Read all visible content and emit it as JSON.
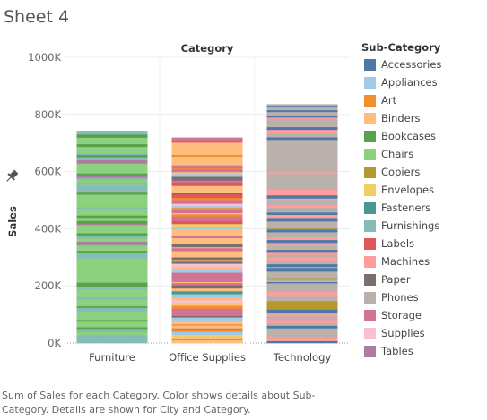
{
  "sheet": {
    "title": "Sheet 4"
  },
  "caption": "Sum of Sales for each Category.  Color shows details about Sub-Category.  Details are shown for City and Category.",
  "chart_data": {
    "type": "bar",
    "stacked": true,
    "title": "Category",
    "xlabel": "",
    "ylabel": "Sales",
    "categories": [
      "Furniture",
      "Office Supplies",
      "Technology"
    ],
    "values": [
      742000,
      719000,
      836000
    ],
    "ylim": [
      0,
      1000000
    ],
    "yticks": [
      0,
      200000,
      400000,
      600000,
      800000,
      1000000
    ],
    "ytick_labels": [
      "0K",
      "200K",
      "400K",
      "600K",
      "800K",
      "1000K"
    ],
    "grid": true,
    "legend": {
      "title": "Sub-Category",
      "position": "right",
      "items": [
        {
          "name": "Accessories",
          "color": "#4e79a7"
        },
        {
          "name": "Appliances",
          "color": "#a0cbe8"
        },
        {
          "name": "Art",
          "color": "#f28e2b"
        },
        {
          "name": "Binders",
          "color": "#ffbe7d"
        },
        {
          "name": "Bookcases",
          "color": "#59a14f"
        },
        {
          "name": "Chairs",
          "color": "#8cd17d"
        },
        {
          "name": "Copiers",
          "color": "#b6992d"
        },
        {
          "name": "Envelopes",
          "color": "#f1ce63"
        },
        {
          "name": "Fasteners",
          "color": "#499894"
        },
        {
          "name": "Furnishings",
          "color": "#86bcb6"
        },
        {
          "name": "Labels",
          "color": "#e15759"
        },
        {
          "name": "Machines",
          "color": "#ff9d9a"
        },
        {
          "name": "Paper",
          "color": "#79706e"
        },
        {
          "name": "Phones",
          "color": "#bab0ac"
        },
        {
          "name": "Storage",
          "color": "#d37295"
        },
        {
          "name": "Supplies",
          "color": "#fabfd2"
        },
        {
          "name": "Tables",
          "color": "#b07aa1"
        }
      ]
    },
    "composition": {
      "Furniture": [
        "Chairs",
        "Furnishings",
        "Bookcases",
        "Tables"
      ],
      "Office Supplies": [
        "Binders",
        "Storage",
        "Art",
        "Paper",
        "Appliances",
        "Supplies",
        "Envelopes",
        "Labels",
        "Fasteners"
      ],
      "Technology": [
        "Phones",
        "Machines",
        "Accessories",
        "Copiers"
      ]
    }
  }
}
